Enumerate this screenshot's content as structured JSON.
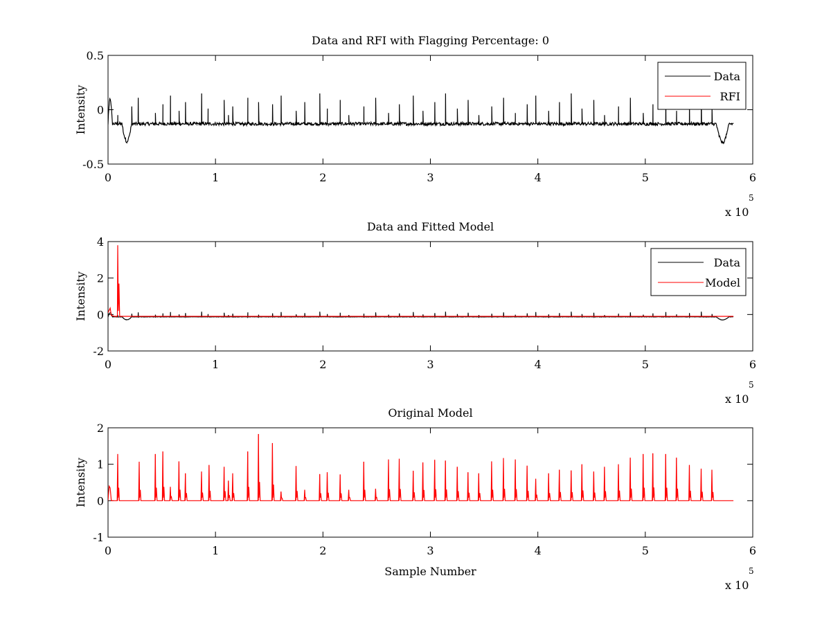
{
  "chart_data": [
    {
      "type": "line",
      "title": "Data and RFI with Flagging Percentage: 0",
      "xlabel": "",
      "ylabel": "Intensity",
      "xlim": [
        0,
        6
      ],
      "ylim": [
        -0.5,
        0.5
      ],
      "x_ticks": [
        "0",
        "1",
        "2",
        "3",
        "4",
        "5",
        "6"
      ],
      "y_ticks": [
        "-0.5",
        "0",
        "0.5"
      ],
      "x_multiplier": {
        "base": "x 10",
        "exponent": "5"
      },
      "grid": false,
      "legend_position": "top-right",
      "baseline": -0.13,
      "spike_positions": [
        0.09,
        0.22,
        0.28,
        0.44,
        0.51,
        0.58,
        0.66,
        0.72,
        0.87,
        0.93,
        1.08,
        1.12,
        1.16,
        1.3,
        1.4,
        1.53,
        1.61,
        1.75,
        1.83,
        1.97,
        2.04,
        2.16,
        2.24,
        2.38,
        2.49,
        2.61,
        2.71,
        2.84,
        2.93,
        3.04,
        3.14,
        3.25,
        3.35,
        3.45,
        3.57,
        3.68,
        3.79,
        3.9,
        3.98,
        4.1,
        4.2,
        4.31,
        4.41,
        4.52,
        4.62,
        4.75,
        4.86,
        4.98,
        5.07,
        5.19,
        5.29,
        5.41,
        5.52,
        5.62
      ],
      "series": [
        {
          "name": "Data",
          "color": "#000000"
        },
        {
          "name": "RFI",
          "color": "#ff0000"
        }
      ]
    },
    {
      "type": "line",
      "title": "Data and Fitted Model",
      "xlabel": "",
      "ylabel": "Intensity",
      "xlim": [
        0,
        6
      ],
      "ylim": [
        -2,
        4
      ],
      "x_ticks": [
        "0",
        "1",
        "2",
        "3",
        "4",
        "5",
        "6"
      ],
      "y_ticks": [
        "-2",
        "0",
        "2",
        "4"
      ],
      "x_multiplier": {
        "base": "x 10",
        "exponent": "5"
      },
      "grid": false,
      "legend_position": "top-right",
      "baseline": -0.13,
      "series": [
        {
          "name": "Data",
          "color": "#000000"
        },
        {
          "name": "Model",
          "color": "#ff0000",
          "peak": {
            "x": 0.09,
            "y": 3.8
          }
        }
      ]
    },
    {
      "type": "line",
      "title": "Original Model",
      "xlabel": "Sample Number",
      "ylabel": "Intensity",
      "xlim": [
        0,
        6
      ],
      "ylim": [
        -1,
        2
      ],
      "x_ticks": [
        "0",
        "1",
        "2",
        "3",
        "4",
        "5",
        "6"
      ],
      "y_ticks": [
        "-1",
        "0",
        "1",
        "2"
      ],
      "x_multiplier": {
        "base": "x 10",
        "exponent": "5"
      },
      "grid": false,
      "series": [
        {
          "color": "#ff0000",
          "peaks": [
            {
              "x": 0.09,
              "y": 1.28
            },
            {
              "x": 0.29,
              "y": 1.07
            },
            {
              "x": 0.44,
              "y": 1.28
            },
            {
              "x": 0.51,
              "y": 1.35
            },
            {
              "x": 0.58,
              "y": 0.38
            },
            {
              "x": 0.66,
              "y": 1.08
            },
            {
              "x": 0.72,
              "y": 0.75
            },
            {
              "x": 0.87,
              "y": 0.8
            },
            {
              "x": 0.94,
              "y": 0.98
            },
            {
              "x": 1.08,
              "y": 0.93
            },
            {
              "x": 1.12,
              "y": 0.55
            },
            {
              "x": 1.16,
              "y": 0.75
            },
            {
              "x": 1.3,
              "y": 1.35
            },
            {
              "x": 1.4,
              "y": 1.83
            },
            {
              "x": 1.53,
              "y": 1.58
            },
            {
              "x": 1.61,
              "y": 0.25
            },
            {
              "x": 1.75,
              "y": 0.95
            },
            {
              "x": 1.83,
              "y": 0.3
            },
            {
              "x": 1.97,
              "y": 0.73
            },
            {
              "x": 2.04,
              "y": 0.78
            },
            {
              "x": 2.16,
              "y": 0.72
            },
            {
              "x": 2.24,
              "y": 0.3
            },
            {
              "x": 2.38,
              "y": 1.07
            },
            {
              "x": 2.49,
              "y": 0.33
            },
            {
              "x": 2.61,
              "y": 1.13
            },
            {
              "x": 2.71,
              "y": 1.15
            },
            {
              "x": 2.84,
              "y": 0.82
            },
            {
              "x": 2.93,
              "y": 1.05
            },
            {
              "x": 3.04,
              "y": 1.12
            },
            {
              "x": 3.14,
              "y": 1.1
            },
            {
              "x": 3.25,
              "y": 0.93
            },
            {
              "x": 3.35,
              "y": 0.78
            },
            {
              "x": 3.45,
              "y": 0.75
            },
            {
              "x": 3.57,
              "y": 1.08
            },
            {
              "x": 3.68,
              "y": 1.17
            },
            {
              "x": 3.79,
              "y": 1.13
            },
            {
              "x": 3.9,
              "y": 0.96
            },
            {
              "x": 3.98,
              "y": 0.6
            },
            {
              "x": 4.1,
              "y": 0.75
            },
            {
              "x": 4.2,
              "y": 0.85
            },
            {
              "x": 4.31,
              "y": 0.83
            },
            {
              "x": 4.41,
              "y": 1.0
            },
            {
              "x": 4.52,
              "y": 0.8
            },
            {
              "x": 4.62,
              "y": 0.93
            },
            {
              "x": 4.75,
              "y": 1.0
            },
            {
              "x": 4.86,
              "y": 1.18
            },
            {
              "x": 4.98,
              "y": 1.28
            },
            {
              "x": 5.07,
              "y": 1.3
            },
            {
              "x": 5.19,
              "y": 1.28
            },
            {
              "x": 5.29,
              "y": 1.18
            },
            {
              "x": 5.41,
              "y": 0.98
            },
            {
              "x": 5.52,
              "y": 0.88
            },
            {
              "x": 5.62,
              "y": 0.85
            }
          ]
        }
      ]
    }
  ]
}
